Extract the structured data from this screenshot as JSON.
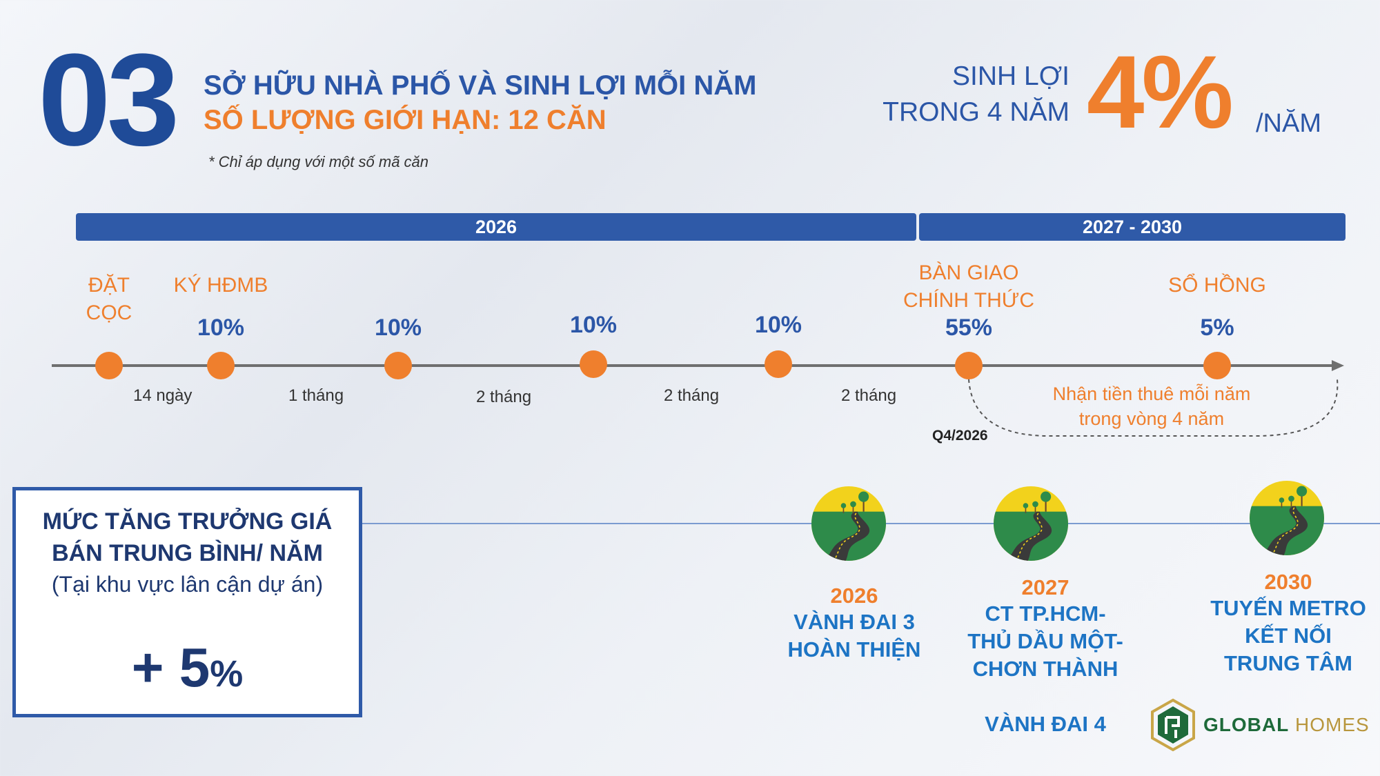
{
  "header": {
    "number": "03",
    "line1": "SỞ HỮU NHÀ PHỐ VÀ SINH LỢI MỖI NĂM",
    "line2": "SỐ LƯỢNG GIỚI HẠN: 12 CĂN",
    "note": "* Chỉ áp dụng với một số mã căn"
  },
  "yield": {
    "label_line1": "SINH LỢI",
    "label_line2": "TRONG 4 NĂM",
    "value": "4%",
    "unit": "/NĂM"
  },
  "periods": [
    {
      "label": "2026"
    },
    {
      "label": "2027 - 2030"
    }
  ],
  "milestones": [
    {
      "label_line1": "ĐẶT",
      "label_line2": "CỌC",
      "percent": ""
    },
    {
      "label_line1": "KÝ HĐMB",
      "label_line2": "",
      "percent": "10%"
    },
    {
      "label_line1": "",
      "label_line2": "",
      "percent": "10%"
    },
    {
      "label_line1": "",
      "label_line2": "",
      "percent": "10%"
    },
    {
      "label_line1": "",
      "label_line2": "",
      "percent": "10%"
    },
    {
      "label_line1": "BÀN GIAO",
      "label_line2": "CHÍNH THỨC",
      "percent": "55%"
    },
    {
      "label_line1": "SỔ HỒNG",
      "label_line2": "",
      "percent": "5%"
    }
  ],
  "durations": [
    "14 ngày",
    "1 tháng",
    "2 tháng",
    "2 tháng",
    "2 tháng"
  ],
  "handover_quarter": "Q4/2026",
  "rent_note": {
    "line1": "Nhận tiền thuê mỗi năm",
    "line2": "trong vòng 4 năm"
  },
  "growth": {
    "title_line1": "MỨC TĂNG TRƯỞNG GIÁ",
    "title_line2": "BÁN TRUNG BÌNH/ NĂM",
    "subtitle": "(Tại khu vực lân cận dự án)",
    "value": "+ 5",
    "unit": "%"
  },
  "infrastructure": [
    {
      "year": "2026",
      "name_lines": [
        "VÀNH ĐAI 3",
        "HOÀN THIỆN"
      ]
    },
    {
      "year": "2027",
      "name_lines": [
        "CT TP.HCM-",
        "THỦ DẦU MỘT-",
        "CHƠN THÀNH"
      ],
      "extra": "VÀNH ĐAI 4"
    },
    {
      "year": "2030",
      "name_lines": [
        "TUYẾN METRO",
        "KẾT NỐI",
        "TRUNG TÂM"
      ]
    }
  ],
  "logo": {
    "brand1": "GLOBAL",
    "brand2": "HOMES"
  },
  "colors": {
    "navy": "#1f4b98",
    "orange": "#ef7f2d",
    "bar": "#2f5aa8",
    "infra_blue": "#1d74c4"
  }
}
